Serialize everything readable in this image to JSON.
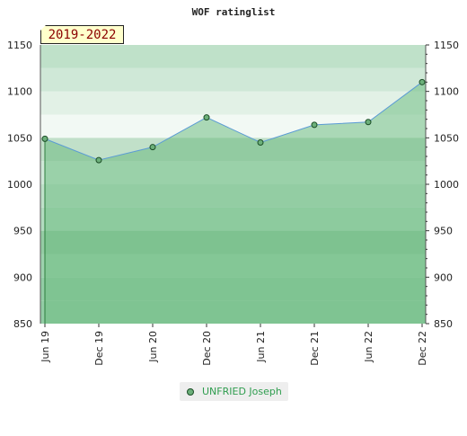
{
  "chart_data": {
    "type": "area",
    "title": "WOF ratinglist",
    "period_label": "2019-2022",
    "categories": [
      "Jun 19",
      "Dec 19",
      "Jun 20",
      "Dec 20",
      "Jun 21",
      "Dec 21",
      "Jun 22",
      "Dec 22"
    ],
    "series": [
      {
        "name": "UNFRIED Joseph",
        "values": [
          1049,
          1026,
          1040,
          1072,
          1045,
          1064,
          1067,
          1110
        ]
      }
    ],
    "ylim": [
      850,
      1150
    ],
    "yticks": [
      850,
      900,
      950,
      1000,
      1050,
      1100,
      1150
    ],
    "xlabel": "",
    "ylabel": "",
    "grid": false,
    "legend_position": "bottom",
    "colors": {
      "fill": "#7cc48e",
      "line": "#5b9bd5",
      "marker": "#6cb07a",
      "marker_edge": "#1b4d26",
      "legend_text": "#2f9d4f"
    }
  }
}
